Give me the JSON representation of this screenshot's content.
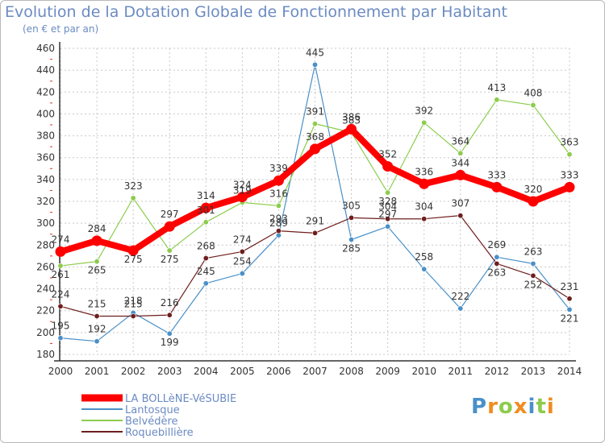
{
  "chart_data": {
    "type": "line",
    "title": "Evolution de la Dotation Globale de Fonctionnement par Habitant",
    "subtitle": "(en € et par an)",
    "x": [
      "2000",
      "2001",
      "2002",
      "2003",
      "2004",
      "2005",
      "2006",
      "2007",
      "2008",
      "2009",
      "2010",
      "2011",
      "2012",
      "2013",
      "2014"
    ],
    "ylim": [
      180,
      460
    ],
    "yticks": [
      180,
      200,
      220,
      240,
      260,
      280,
      300,
      320,
      340,
      360,
      380,
      400,
      420,
      440,
      460
    ],
    "grid": true,
    "legend_position": "bottom-left",
    "series": [
      {
        "name": "LA BOLLèNE-VéSUBIE",
        "color": "#ff0000",
        "values": [
          274,
          284,
          275,
          297,
          314,
          324,
          339,
          368,
          386,
          352,
          336,
          344,
          333,
          320,
          333
        ]
      },
      {
        "name": "Lantosque",
        "color": "#4a90c8",
        "values": [
          195,
          192,
          218,
          199,
          245,
          254,
          289,
          445,
          285,
          297,
          258,
          222,
          269,
          263,
          221
        ]
      },
      {
        "name": "Belvédère",
        "color": "#8ccc4c",
        "values": [
          261,
          265,
          323,
          275,
          301,
          319,
          316,
          391,
          383,
          328,
          392,
          364,
          413,
          408,
          363
        ]
      },
      {
        "name": "Roquebillière",
        "color": "#6e1e1e",
        "values": [
          224,
          215,
          215,
          216,
          268,
          274,
          293,
          291,
          305,
          304,
          304,
          307,
          263,
          252,
          231
        ]
      }
    ]
  },
  "logo": {
    "letters": [
      "P",
      "r",
      "o",
      "x",
      "i",
      "t",
      "i"
    ],
    "colors": [
      "#4a90c8",
      "#f08c1e",
      "#8ccc4c",
      "#f08c1e",
      "#4a90c8",
      "#8ccc4c",
      "#f08c1e"
    ]
  }
}
